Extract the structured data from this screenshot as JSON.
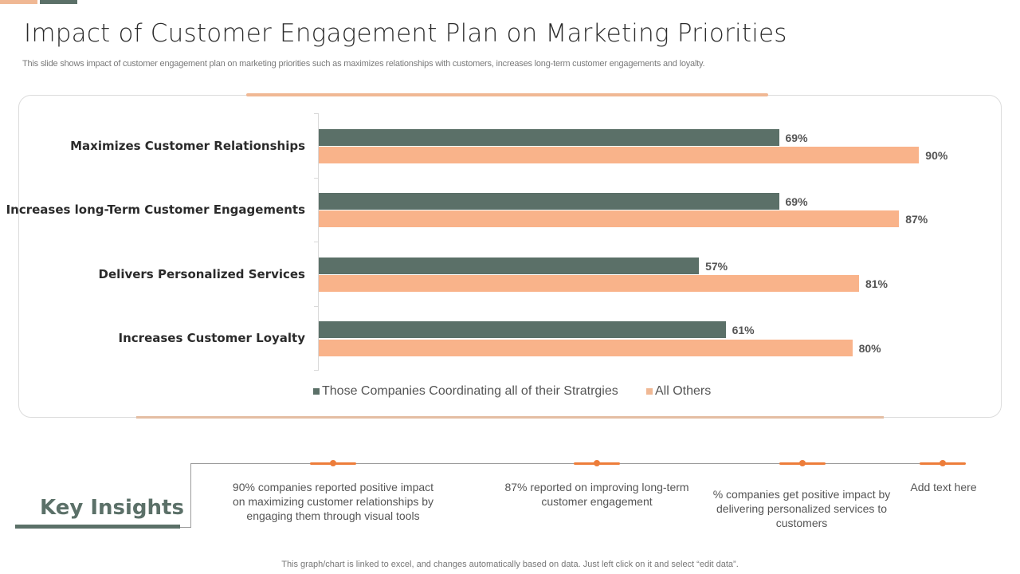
{
  "header": {
    "title": "Impact of Customer Engagement Plan on Marketing Priorities",
    "subtitle": "This slide shows impact of customer engagement plan on marketing priorities such as maximizes relationships with customers, increases long-term customer engagements and loyalty."
  },
  "colors": {
    "series1": "#5b7068",
    "series2": "#f9b38a",
    "accent_orange": "#ed7d3a",
    "accent_peach": "#f0b894"
  },
  "chart_data": {
    "type": "bar",
    "orientation": "horizontal",
    "title": "",
    "xlabel": "",
    "ylabel": "",
    "categories": [
      "Maximizes Customer Relationships",
      "Increases long-Term Customer Engagements",
      "Delivers Personalized Services",
      "Increases Customer Loyalty"
    ],
    "series": [
      {
        "name": "Those Companies Coordinating all of their Stratrgies",
        "values": [
          69,
          69,
          57,
          61
        ],
        "labels": [
          "69%",
          "69%",
          "57%",
          "61%"
        ]
      },
      {
        "name": "All Others",
        "values": [
          90,
          87,
          81,
          80
        ],
        "labels": [
          "90%",
          "87%",
          "81%",
          "80%"
        ]
      }
    ],
    "xlim": [
      0,
      100
    ],
    "grid": false,
    "legend_position": "bottom"
  },
  "legend": {
    "items": [
      {
        "label": "Those Companies Coordinating all of their Stratrgies"
      },
      {
        "label": "All Others"
      }
    ]
  },
  "key_insights": {
    "title": "Key Insights",
    "items": [
      {
        "text": "90% companies reported positive impact on maximizing customer relationships by engaging them through visual tools"
      },
      {
        "text": "87% reported on improving long-term customer engagement"
      },
      {
        "text": "% companies get positive impact by delivering personalized services to customers"
      },
      {
        "text": "Add text here"
      }
    ]
  },
  "footer": {
    "note": "This graph/chart is linked to excel, and changes automatically based on data. Just left click on it and select “edit data”."
  }
}
